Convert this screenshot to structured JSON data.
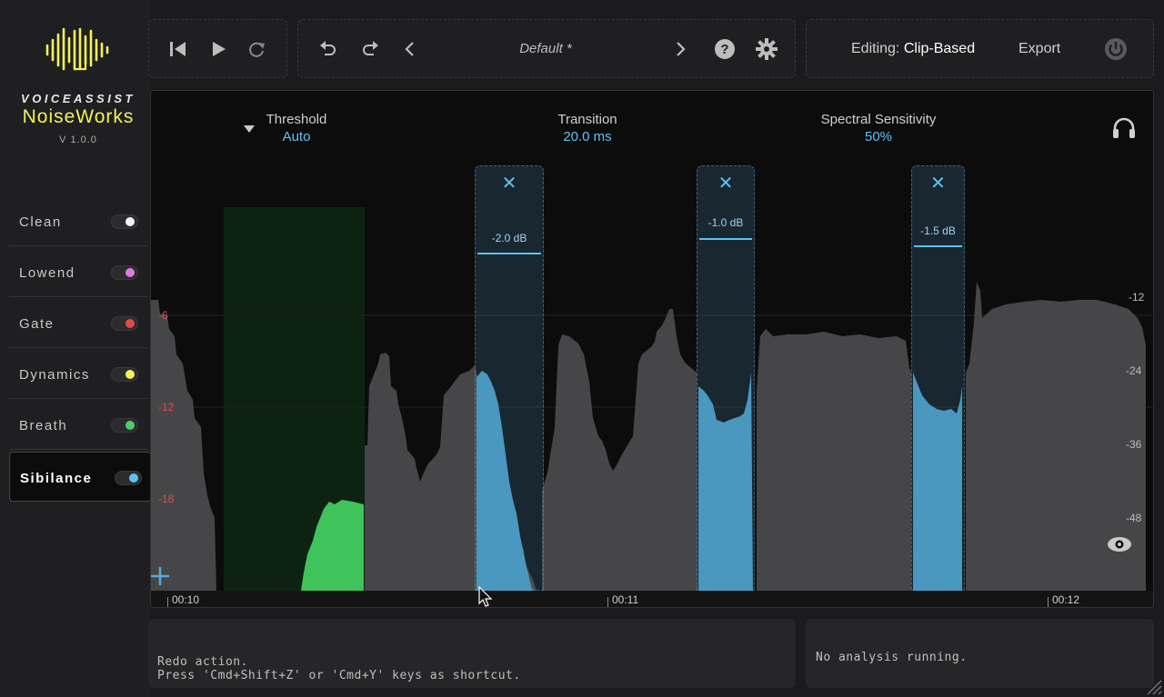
{
  "brand": {
    "company": "VOICEASSIST",
    "product": "NoiseWorks",
    "version": "V 1.0.0"
  },
  "modules": [
    {
      "label": "Clean",
      "color": "#f2f2f2"
    },
    {
      "label": "Lowend",
      "color": "#e07ae0"
    },
    {
      "label": "Gate",
      "color": "#e04a4a"
    },
    {
      "label": "Dynamics",
      "color": "#f2f25a"
    },
    {
      "label": "Breath",
      "color": "#4ad06a"
    },
    {
      "label": "Sibilance",
      "color": "#5ec2f0"
    }
  ],
  "active_module": "Sibilance",
  "transport": {
    "icons": [
      "skip-back-icon",
      "play-icon",
      "loop-icon"
    ]
  },
  "preset": {
    "name": "Default *"
  },
  "header": {
    "editing_label": "Editing:",
    "editing_mode": "Clip-Based",
    "export_label": "Export"
  },
  "params": {
    "threshold_label": "Threshold",
    "threshold_value": "Auto",
    "transition_label": "Transition",
    "transition_value": "20.0 ms",
    "sensitivity_label": "Spectral Sensitivity",
    "sensitivity_value": "50%"
  },
  "bands": [
    {
      "gain": "-2.0 dB"
    },
    {
      "gain": "-1.0 dB"
    },
    {
      "gain": "-1.5 dB"
    }
  ],
  "axis_left": [
    "-6",
    "-12",
    "-18"
  ],
  "axis_right": [
    "-12",
    "-24",
    "-36",
    "-48"
  ],
  "timeline": [
    "00:10",
    "00:11",
    "00:12"
  ],
  "status": {
    "message_line1": "Redo action.",
    "message_line2": "Press 'Cmd+Shift+Z' or 'Cmd+Y' keys as shortcut.",
    "analysis": "No analysis running."
  },
  "colors": {
    "accent_blue": "#5ec2f0",
    "accent_yellow": "#f2f25a",
    "breath_green": "#4ad06a",
    "gate_red": "#e04a4a"
  }
}
